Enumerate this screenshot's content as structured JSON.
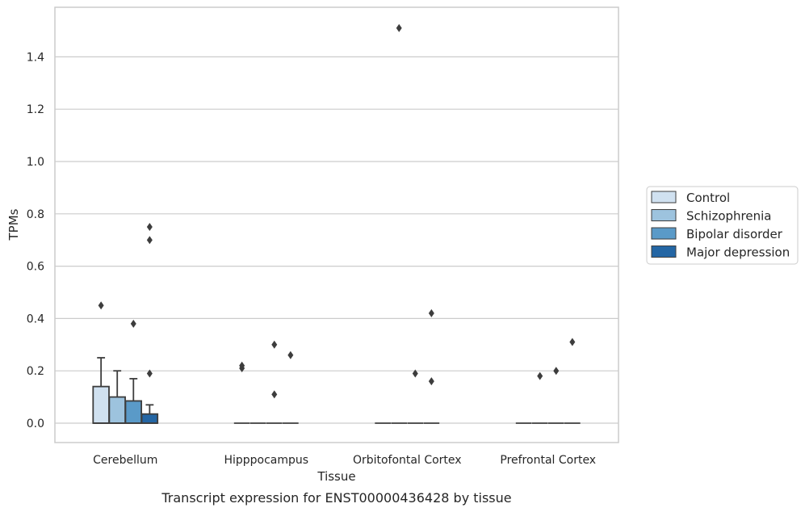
{
  "chart_data": {
    "type": "box",
    "xlabel": "Tissue",
    "ylabel": "TPMs",
    "caption": "Transcript expression for ENST00000436428 by tissue",
    "ylim": [
      -0.075,
      1.56
    ],
    "yticks": [
      0.0,
      0.2,
      0.4,
      0.6,
      0.8,
      1.0,
      1.2,
      1.4
    ],
    "ytick_labels": [
      "0.0",
      "0.2",
      "0.4",
      "0.6",
      "0.8",
      "1.0",
      "1.2",
      "1.4"
    ],
    "grid": "horizontal",
    "legend_position": "right",
    "categories": [
      "Cerebellum",
      "Hipppocampus",
      "Orbitofontal Cortex",
      "Prefrontal Cortex"
    ],
    "series": [
      {
        "name": "Control",
        "color": "#d0e1f0",
        "boxes": [
          {
            "q1": 0.0,
            "median": 0.0,
            "q3": 0.14,
            "whisker_low": 0.0,
            "whisker_high": 0.25,
            "outliers": [
              0.45
            ]
          },
          {
            "q1": 0.0,
            "median": 0.0,
            "q3": 0.0,
            "whisker_low": 0.0,
            "whisker_high": 0.0,
            "outliers": [
              0.21,
              0.22
            ]
          },
          {
            "q1": 0.0,
            "median": 0.0,
            "q3": 0.0,
            "whisker_low": 0.0,
            "whisker_high": 0.0,
            "outliers": []
          },
          {
            "q1": 0.0,
            "median": 0.0,
            "q3": 0.0,
            "whisker_low": 0.0,
            "whisker_high": 0.0,
            "outliers": []
          }
        ]
      },
      {
        "name": "Schizophrenia",
        "color": "#9dc3de",
        "boxes": [
          {
            "q1": 0.0,
            "median": 0.0,
            "q3": 0.1,
            "whisker_low": 0.0,
            "whisker_high": 0.2,
            "outliers": []
          },
          {
            "q1": 0.0,
            "median": 0.0,
            "q3": 0.0,
            "whisker_low": 0.0,
            "whisker_high": 0.0,
            "outliers": []
          },
          {
            "q1": 0.0,
            "median": 0.0,
            "q3": 0.0,
            "whisker_low": 0.0,
            "whisker_high": 0.0,
            "outliers": [
              1.51
            ]
          },
          {
            "q1": 0.0,
            "median": 0.0,
            "q3": 0.0,
            "whisker_low": 0.0,
            "whisker_high": 0.0,
            "outliers": [
              0.18
            ]
          }
        ]
      },
      {
        "name": "Bipolar disorder",
        "color": "#5a9ac8",
        "boxes": [
          {
            "q1": 0.0,
            "median": 0.0,
            "q3": 0.085,
            "whisker_low": 0.0,
            "whisker_high": 0.17,
            "outliers": [
              0.38
            ]
          },
          {
            "q1": 0.0,
            "median": 0.0,
            "q3": 0.0,
            "whisker_low": 0.0,
            "whisker_high": 0.0,
            "outliers": [
              0.3,
              0.11
            ]
          },
          {
            "q1": 0.0,
            "median": 0.0,
            "q3": 0.0,
            "whisker_low": 0.0,
            "whisker_high": 0.0,
            "outliers": [
              0.19
            ]
          },
          {
            "q1": 0.0,
            "median": 0.0,
            "q3": 0.0,
            "whisker_low": 0.0,
            "whisker_high": 0.0,
            "outliers": [
              0.2
            ]
          }
        ]
      },
      {
        "name": "Major depression",
        "color": "#2466a4",
        "boxes": [
          {
            "q1": 0.0,
            "median": 0.0,
            "q3": 0.035,
            "whisker_low": 0.0,
            "whisker_high": 0.07,
            "outliers": [
              0.75,
              0.7,
              0.19
            ]
          },
          {
            "q1": 0.0,
            "median": 0.0,
            "q3": 0.0,
            "whisker_low": 0.0,
            "whisker_high": 0.0,
            "outliers": [
              0.26
            ]
          },
          {
            "q1": 0.0,
            "median": 0.0,
            "q3": 0.0,
            "whisker_low": 0.0,
            "whisker_high": 0.0,
            "outliers": [
              0.42,
              0.16
            ]
          },
          {
            "q1": 0.0,
            "median": 0.0,
            "q3": 0.0,
            "whisker_low": 0.0,
            "whisker_high": 0.0,
            "outliers": [
              0.31
            ]
          }
        ]
      }
    ]
  },
  "style": {
    "grid_color": "#cccccc",
    "frame_color": "#cccccc",
    "stroke_color": "#3d3d3d",
    "text_color": "#262626"
  }
}
